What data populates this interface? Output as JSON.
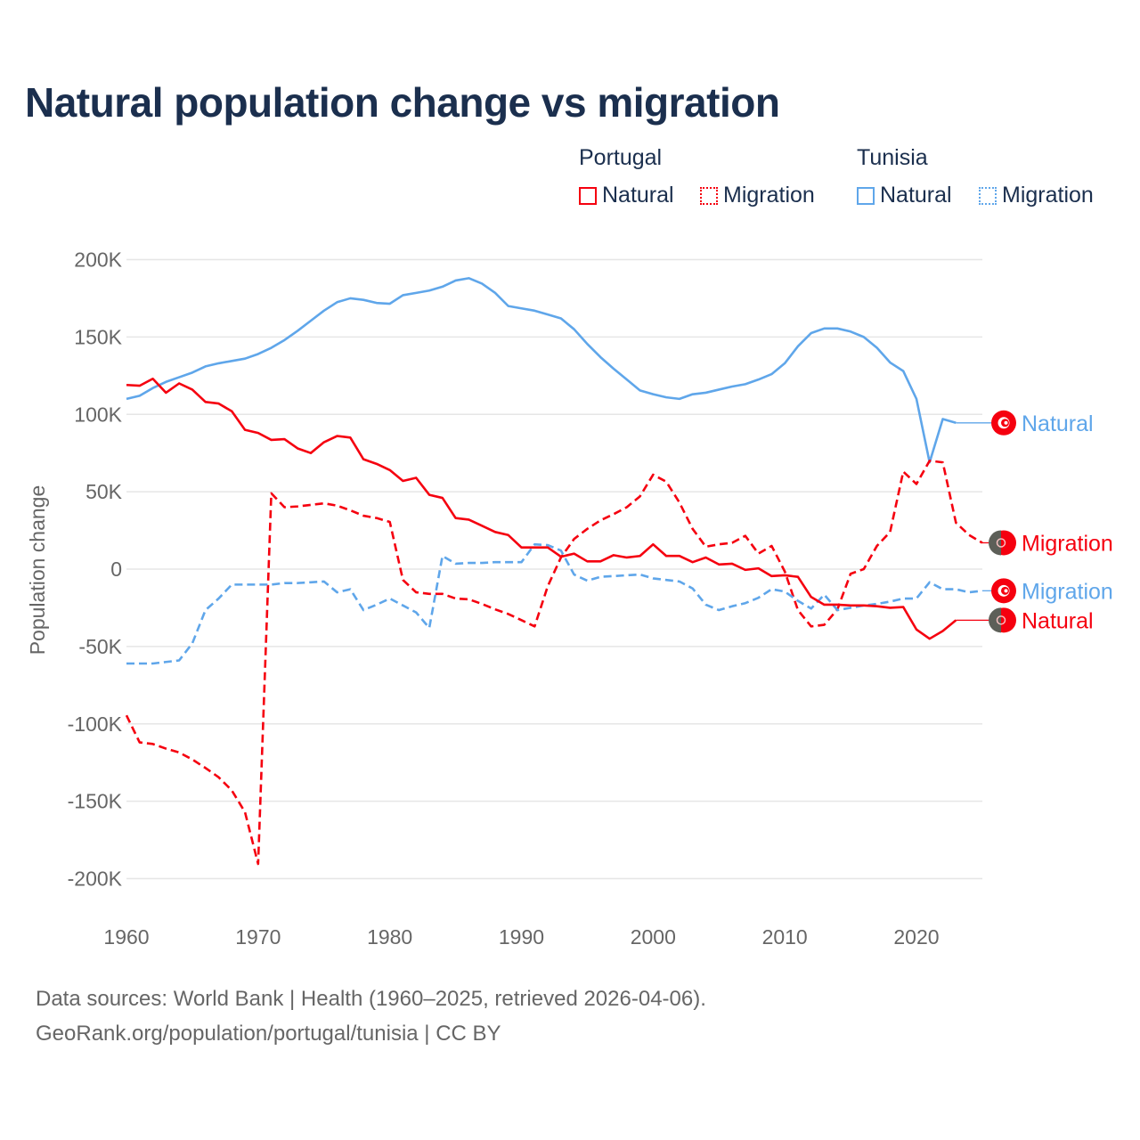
{
  "chart_data": {
    "type": "line",
    "title": "Natural population change vs migration",
    "ylabel": "Population change",
    "xlabel": "",
    "ylim": [
      -200000,
      200000
    ],
    "xlim": [
      1960,
      2025
    ],
    "y_ticks": [
      200000,
      150000,
      100000,
      50000,
      0,
      -50000,
      -100000,
      -150000,
      -200000
    ],
    "y_tick_labels": [
      "200K",
      "150K",
      "100K",
      "50K",
      "0",
      "-50K",
      "-100K",
      "-150K",
      "-200K"
    ],
    "x_ticks": [
      1960,
      1970,
      1980,
      1990,
      2000,
      2010,
      2020
    ],
    "x_tick_labels": [
      "1960",
      "1970",
      "1980",
      "1990",
      "2000",
      "2010",
      "2020"
    ],
    "grid": true,
    "legend_placement": "top-right",
    "legend": {
      "groups": [
        {
          "country": "Portugal",
          "items": [
            "Natural",
            "Migration"
          ]
        },
        {
          "country": "Tunisia",
          "items": [
            "Natural",
            "Migration"
          ]
        }
      ]
    },
    "series": [
      {
        "name": "Tunisia Natural",
        "country": "Tunisia",
        "kind": "Natural",
        "color": "#5fa6ea",
        "dash": false,
        "end_label": "Natural",
        "start_year": 1960,
        "values": [
          110,
          112,
          117,
          121,
          124,
          127,
          131,
          133,
          134.5,
          136,
          139,
          143,
          148,
          154,
          160.5,
          167,
          172.5,
          175,
          174,
          172,
          171.5,
          177,
          178.5,
          180,
          182.5,
          186.5,
          188,
          184.5,
          178.5,
          170,
          168.5,
          167,
          164.5,
          162,
          155,
          145.5,
          137,
          129.5,
          122.5,
          115.5,
          113,
          111,
          110,
          113,
          114,
          116,
          118,
          119.5,
          122.5,
          126,
          133,
          144,
          152.5,
          155.5,
          155.5,
          153.5,
          150,
          143,
          133.5,
          128,
          110,
          69,
          97,
          94.5
        ]
      },
      {
        "name": "Portugal Migration",
        "country": "Portugal",
        "kind": "Migration",
        "color": "#f5000f",
        "dash": true,
        "end_label": "Migration",
        "start_year": 1960,
        "values": [
          -94.5,
          -112,
          -113,
          -116,
          -118.5,
          -123,
          -128.5,
          -134.5,
          -143,
          -157,
          -190.5,
          49,
          40,
          40.5,
          41.5,
          42.5,
          41,
          38,
          34.5,
          33,
          30.5,
          -7,
          -15,
          -16,
          -16,
          -19,
          -19.5,
          -22.5,
          -26,
          -29,
          -33,
          -37,
          -11,
          7.5,
          19.5,
          26,
          31.5,
          35.5,
          40,
          47,
          61,
          56.5,
          43,
          26,
          14.5,
          16,
          17,
          21.5,
          10,
          15,
          -1.5,
          -26.5,
          -37,
          -36,
          -26,
          -3,
          0,
          15,
          24,
          63,
          55,
          70,
          69,
          30,
          22,
          17
        ]
      },
      {
        "name": "Tunisia Migration",
        "country": "Tunisia",
        "kind": "Migration",
        "color": "#5fa6ea",
        "dash": true,
        "end_label": "Migration",
        "start_year": 1960,
        "values": [
          -61,
          -61,
          -61,
          -60,
          -59,
          -48,
          -26.5,
          -19,
          -10,
          -10,
          -10,
          -10,
          -9,
          -9,
          -8.5,
          -8,
          -15,
          -13,
          -26.5,
          -23,
          -19,
          -23.5,
          -28,
          -38,
          8.5,
          3.5,
          4,
          4,
          4.5,
          4.5,
          4.5,
          16,
          15.5,
          12,
          -3.5,
          -7.5,
          -5,
          -4.5,
          -4,
          -3.5,
          -6,
          -7,
          -8,
          -12.5,
          -23,
          -26.5,
          -24,
          -22,
          -18.5,
          -13,
          -14.5,
          -20.5,
          -25.5,
          -16.5,
          -26.5,
          -25,
          -23.5,
          -22.5,
          -21,
          -19,
          -19,
          -8.5,
          -13,
          -13,
          -15,
          -14
        ]
      },
      {
        "name": "Portugal Natural",
        "country": "Portugal",
        "kind": "Natural",
        "color": "#f5000f",
        "dash": false,
        "end_label": "Natural",
        "start_year": 1960,
        "values": [
          119,
          118.5,
          123,
          114,
          120,
          116,
          108,
          107,
          102,
          90,
          88,
          83.5,
          84,
          78,
          75,
          82,
          86,
          85,
          71,
          68,
          64,
          57,
          59,
          48,
          46,
          33,
          32,
          28,
          24,
          22,
          14,
          14,
          14,
          8,
          10,
          5,
          5,
          9,
          7.5,
          8.5,
          16,
          8.5,
          8.5,
          4.5,
          7.5,
          3,
          3.5,
          -0.5,
          0.5,
          -4.5,
          -4,
          -5,
          -18,
          -23,
          -23,
          -23.5,
          -23.5,
          -24,
          -25,
          -24.5,
          -39,
          -45,
          -40,
          -33
        ]
      }
    ],
    "value_unit": "thousands"
  },
  "legend": {
    "portugal": "Portugal",
    "tunisia": "Tunisia",
    "natural": "Natural",
    "migration": "Migration",
    "color_portugal": "#f5000f",
    "color_tunisia": "#5fa6ea"
  },
  "footer": {
    "line1": "Data sources: World Bank | Health (1960–2025, retrieved 2026-04-06).",
    "line2": "GeoRank.org/population/portugal/tunisia | CC BY"
  }
}
